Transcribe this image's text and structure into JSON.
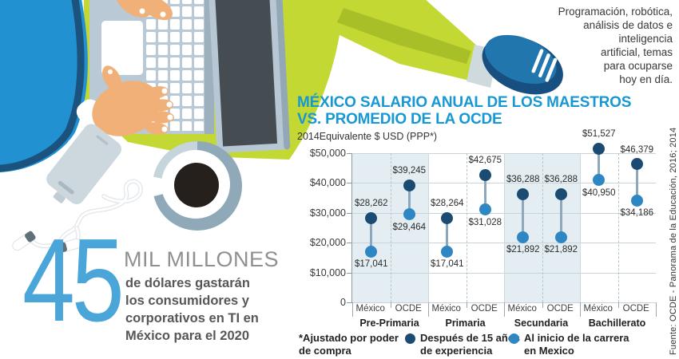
{
  "top_right_note": "Programación, robótica,\nanálisis de datos e\ninteligencia\nartificial, temas\npara ocuparse\nhoy en día.",
  "stat": {
    "number": "45",
    "unit": "MIL MILLONES",
    "description": "de dólares gastarán\nlos consumidores y\ncorporativos en TI en\nMéxico para el 2020"
  },
  "chart": {
    "title": "MÉXICO SALARIO ANUAL DE LOS MAESTROS\nVS. PROMEDIO DE LA OCDE",
    "subtitle": "2014Equivalente $ USD (PPP*)"
  },
  "chart_data": {
    "type": "scatter",
    "variant": "dumbbell",
    "title": "MÉXICO SALARIO ANUAL DE LOS MAESTROS VS. PROMEDIO DE LA OCDE",
    "unit_label": "2014Equivalente $ USD (PPP*)",
    "ylim": [
      0,
      50000
    ],
    "grid": true,
    "yticks": [
      {
        "value": 50000,
        "label": "$50,000"
      },
      {
        "value": 40000,
        "label": "$40,000"
      },
      {
        "value": 30000,
        "label": "$30,000"
      },
      {
        "value": 20000,
        "label": "$20,000"
      },
      {
        "value": 10000,
        "label": "$10,000"
      },
      {
        "value": 0,
        "label": "0"
      }
    ],
    "categories": [
      "Pre-Primaria",
      "Primaria",
      "Secundaria",
      "Bachillerato"
    ],
    "column_labels": [
      "México",
      "OCDE",
      "México",
      "OCDE",
      "México",
      "OCDE",
      "México",
      "OCDE"
    ],
    "shaded_groups": [
      0,
      2
    ],
    "series_meta": [
      {
        "name": "Después de 15 años de experiencia",
        "color": "#1b4a72"
      },
      {
        "name": "Al inicio de la carrera en Mexico",
        "color": "#2e86c3"
      }
    ],
    "points": [
      {
        "category": "Pre-Primaria",
        "column": "México",
        "experienced": 28262,
        "experienced_label": "$28,262",
        "start": 17041,
        "start_label": "$17,041"
      },
      {
        "category": "Pre-Primaria",
        "column": "OCDE",
        "experienced": 39245,
        "experienced_label": "$39,245",
        "start": 29464,
        "start_label": "$29,464"
      },
      {
        "category": "Primaria",
        "column": "México",
        "experienced": 28264,
        "experienced_label": "$28,264",
        "start": 17041,
        "start_label": "$17,041"
      },
      {
        "category": "Primaria",
        "column": "OCDE",
        "experienced": 42675,
        "experienced_label": "$42,675",
        "start": 31028,
        "start_label": "$31,028"
      },
      {
        "category": "Secundaria",
        "column": "México",
        "experienced": 36288,
        "experienced_label": "$36,288",
        "start": 21892,
        "start_label": "$21,892"
      },
      {
        "category": "Secundaria",
        "column": "OCDE",
        "experienced": 36288,
        "experienced_label": "$36,288",
        "start": 21892,
        "start_label": "$21,892"
      },
      {
        "category": "Bachillerato",
        "column": "México",
        "experienced": 51527,
        "experienced_label": "$51,527",
        "start": 40950,
        "start_label": "$40,950"
      },
      {
        "category": "Bachillerato",
        "column": "OCDE",
        "experienced": 46379,
        "experienced_label": "$46,379",
        "start": 34186,
        "start_label": "$34,186"
      }
    ]
  },
  "legend": {
    "note": "*Ajustado por poder\nde compra",
    "experienced": "Después de 15 años\nde experiencia",
    "start": "Al inicio de la carrera\nen Mexico"
  },
  "source": "Fuente: OCDE - Panorama de la Educación, 2016; 2014",
  "colors": {
    "title_blue": "#1798d4",
    "dot_dark": "#1b4a72",
    "dot_light": "#2e86c3",
    "connector": "#8ca8ba",
    "shaded_column": "#e4eef2",
    "big_number_blue": "#4aa5d8",
    "lime_green": "#c3d832",
    "person_blue": "#2191d1"
  }
}
